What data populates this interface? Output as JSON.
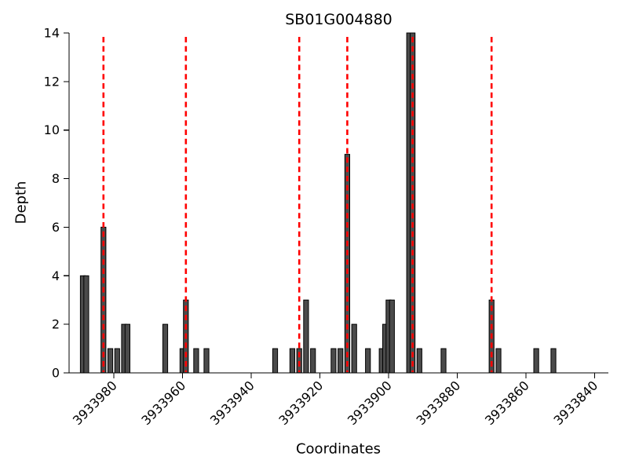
{
  "chart_data": {
    "type": "bar",
    "title": "SB01G004880",
    "xlabel": "Coordinates",
    "ylabel": "Depth",
    "x_axis_reversed": true,
    "grid": false,
    "legend": "none",
    "xlim": [
      3933993,
      3933836
    ],
    "ylim": [
      0,
      14
    ],
    "yticks": [
      0,
      2,
      4,
      6,
      8,
      10,
      12,
      14
    ],
    "xticks": [
      3933980,
      3933960,
      3933940,
      3933920,
      3933900,
      3933880,
      3933860,
      3933840
    ],
    "bars": [
      {
        "x": 3933989,
        "depth": 4
      },
      {
        "x": 3933988,
        "depth": 4
      },
      {
        "x": 3933983,
        "depth": 6
      },
      {
        "x": 3933981,
        "depth": 1
      },
      {
        "x": 3933979,
        "depth": 1
      },
      {
        "x": 3933977,
        "depth": 2
      },
      {
        "x": 3933976,
        "depth": 2
      },
      {
        "x": 3933965,
        "depth": 2
      },
      {
        "x": 3933960,
        "depth": 1
      },
      {
        "x": 3933959,
        "depth": 3
      },
      {
        "x": 3933956,
        "depth": 1
      },
      {
        "x": 3933953,
        "depth": 1
      },
      {
        "x": 3933933,
        "depth": 1
      },
      {
        "x": 3933928,
        "depth": 1
      },
      {
        "x": 3933926,
        "depth": 1
      },
      {
        "x": 3933924,
        "depth": 3
      },
      {
        "x": 3933922,
        "depth": 1
      },
      {
        "x": 3933916,
        "depth": 1
      },
      {
        "x": 3933914,
        "depth": 1
      },
      {
        "x": 3933912,
        "depth": 9
      },
      {
        "x": 3933910,
        "depth": 2
      },
      {
        "x": 3933906,
        "depth": 1
      },
      {
        "x": 3933902,
        "depth": 1
      },
      {
        "x": 3933901,
        "depth": 2
      },
      {
        "x": 3933900,
        "depth": 3
      },
      {
        "x": 3933899,
        "depth": 3
      },
      {
        "x": 3933894,
        "depth": 14
      },
      {
        "x": 3933893,
        "depth": 14
      },
      {
        "x": 3933891,
        "depth": 1
      },
      {
        "x": 3933884,
        "depth": 1
      },
      {
        "x": 3933870,
        "depth": 3
      },
      {
        "x": 3933868,
        "depth": 1
      },
      {
        "x": 3933857,
        "depth": 1
      },
      {
        "x": 3933852,
        "depth": 1
      }
    ],
    "vlines": [
      3933983,
      3933959,
      3933926,
      3933912,
      3933893,
      3933870
    ],
    "colors": {
      "bar_fill": "#4b4b4b",
      "bar_edge": "#000000",
      "vline": "#ff0000",
      "axis": "#000000",
      "background": "#ffffff"
    }
  }
}
